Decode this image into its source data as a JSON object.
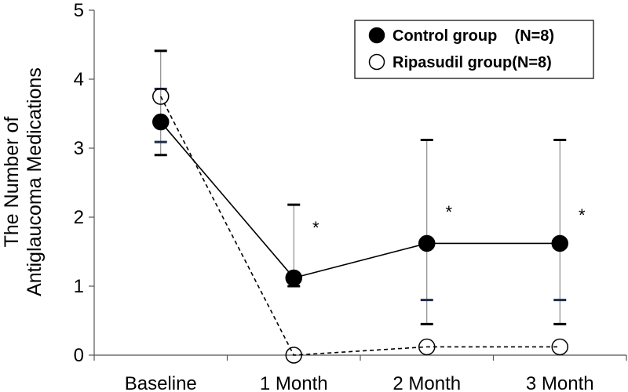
{
  "chart_data": {
    "type": "line",
    "title": "",
    "xlabel": "",
    "ylabel": [
      "The Number of",
      "Antiglaucoma Medications"
    ],
    "categories": [
      "Baseline",
      "1 Month",
      "2 Month",
      "3 Month"
    ],
    "ylim": [
      0,
      5
    ],
    "yticks": [
      "0",
      "1",
      "2",
      "3",
      "4",
      "5"
    ],
    "grid": false,
    "legend_position": "top-right",
    "series": [
      {
        "name": "Control group    (N=8)",
        "marker": "filled-circle",
        "line_style": "solid",
        "color": "#000000",
        "values": [
          3.38,
          1.12,
          1.62,
          1.62
        ],
        "error_upper": [
          4.41,
          2.18,
          3.12,
          3.12
        ],
        "error_lower": [
          2.9,
          1.0,
          0.45,
          0.45
        ]
      },
      {
        "name": "Ripasudil group(N=8)",
        "marker": "open-circle",
        "line_style": "dashed",
        "color": "#000000",
        "values": [
          3.75,
          0.0,
          0.12,
          0.12
        ],
        "error_upper": [
          3.86,
          null,
          0.8,
          0.8
        ],
        "error_lower": [
          3.09,
          null,
          null,
          null
        ]
      }
    ],
    "annotations": [
      {
        "text": "*",
        "category": "1 Month",
        "y": 1.92
      },
      {
        "text": "*",
        "category": "2 Month",
        "y": 2.15
      },
      {
        "text": "*",
        "category": "3 Month",
        "y": 2.1
      }
    ],
    "error_bar_colors": {
      "control": "#000000",
      "ripasudil": "#1f2a4a"
    }
  }
}
